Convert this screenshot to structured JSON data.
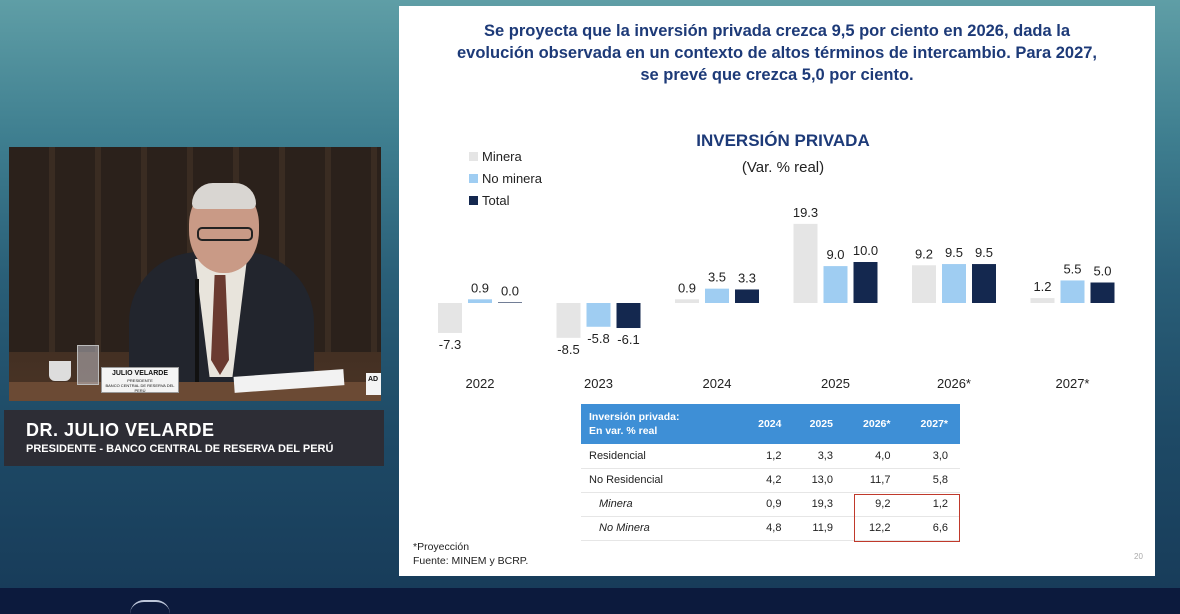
{
  "speaker": {
    "nameplate_name": "JULIO VELARDE",
    "nameplate_title": "PRESIDENTE",
    "nameplate_org": "BANCO CENTRAL DE RESERVA DEL PERÚ",
    "nameplate_partial": "AD",
    "caption_name": "DR. JULIO VELARDE",
    "caption_role": "PRESIDENTE - BANCO CENTRAL DE RESERVA DEL PERÚ"
  },
  "slide": {
    "headline_lines": [
      "Se proyecta que la inversión privada crezca 9,5 por ciento en 2026, dada la",
      "evolución observada en un contexto de altos términos de intercambio. Para 2027,",
      "se prevé que crezca 5,0 por ciento."
    ],
    "footnote_1": "*Proyección",
    "footnote_2": "Fuente: MINEM y BCRP.",
    "page_number": "20"
  },
  "chart_data": {
    "type": "bar",
    "title": "INVERSIÓN PRIVADA",
    "subtitle": "(Var. % real)",
    "categories": [
      "2022",
      "2023",
      "2024",
      "2025",
      "2026*",
      "2027*"
    ],
    "series": [
      {
        "name": "Minera",
        "color": "#e5e5e5",
        "values": [
          -7.3,
          -8.5,
          0.9,
          19.3,
          9.2,
          1.2
        ]
      },
      {
        "name": "No minera",
        "color": "#9fcdf2",
        "values": [
          0.9,
          -5.8,
          3.5,
          9.0,
          9.5,
          5.5
        ]
      },
      {
        "name": "Total",
        "color": "#14284f",
        "values": [
          0.0,
          -6.1,
          3.3,
          10.0,
          9.5,
          5.0
        ]
      }
    ],
    "legend_position": "top-left",
    "grid": false,
    "ylim": [
      -9,
      20
    ]
  },
  "table": {
    "header_label_1": "Inversión privada:",
    "header_label_2": "En var. % real",
    "columns": [
      "2024",
      "2025",
      "2026*",
      "2027*"
    ],
    "rows": [
      {
        "label": "Residencial",
        "values": [
          "1,2",
          "3,3",
          "4,0",
          "3,0"
        ],
        "sub": false
      },
      {
        "label": "No Residencial",
        "values": [
          "4,2",
          "13,0",
          "11,7",
          "5,8"
        ],
        "sub": false
      },
      {
        "label": "Minera",
        "values": [
          "0,9",
          "19,3",
          "9,2",
          "1,2"
        ],
        "sub": true
      },
      {
        "label": "No Minera",
        "values": [
          "4,8",
          "11,9",
          "12,2",
          "6,6"
        ],
        "sub": true
      }
    ],
    "highlight_color": "#c0392b"
  }
}
